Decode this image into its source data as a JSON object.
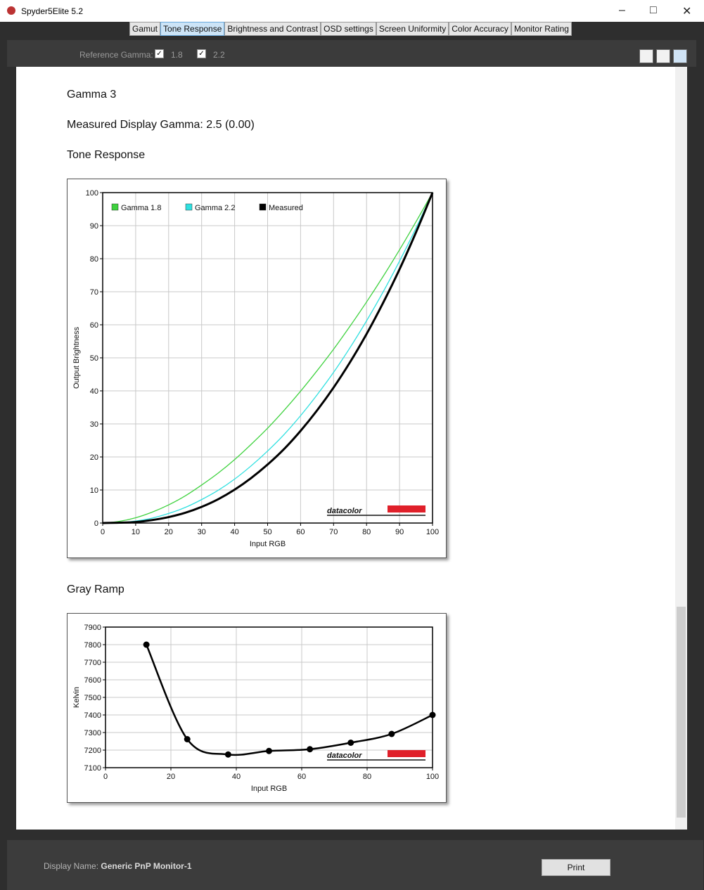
{
  "window": {
    "title": "Spyder5Elite 5.2"
  },
  "tabs": {
    "items": [
      "Gamut",
      "Tone Response",
      "Brightness and Contrast",
      "OSD settings",
      "Screen Uniformity",
      "Color Accuracy",
      "Monitor Rating"
    ],
    "active": 1
  },
  "reference": {
    "label": "Reference Gamma:",
    "options": [
      "1.8",
      "2.2"
    ]
  },
  "content": {
    "gamma_name": "Gamma 3",
    "measured_gamma": "Measured Display Gamma: 2.5 (0.00)"
  },
  "chart_data": [
    {
      "type": "line",
      "title": "Tone Response",
      "xlabel": "Input RGB",
      "ylabel": "Output Brightness",
      "x": [
        0,
        5,
        10,
        15,
        20,
        25,
        30,
        35,
        40,
        45,
        50,
        55,
        60,
        65,
        70,
        75,
        80,
        85,
        90,
        95,
        100
      ],
      "series": [
        {
          "name": "Gamma 1.8",
          "color": "#3fd23f",
          "values": [
            0,
            0.5,
            1.6,
            3.3,
            5.5,
            8.2,
            11.5,
            15.1,
            19.2,
            23.8,
            28.7,
            34.1,
            39.9,
            46.1,
            52.6,
            59.6,
            66.9,
            74.6,
            82.7,
            91.2,
            100
          ]
        },
        {
          "name": "Gamma 2.2",
          "color": "#2ee0e0",
          "values": [
            0,
            0.1,
            0.6,
            1.5,
            2.9,
            4.7,
            7.1,
            9.9,
            13.3,
            17.3,
            21.8,
            26.8,
            32.5,
            38.8,
            45.6,
            53.1,
            61.2,
            69.9,
            79.3,
            89.3,
            100
          ]
        },
        {
          "name": "Measured",
          "color": "#000000",
          "values": [
            0,
            0.1,
            0.3,
            0.9,
            1.8,
            3.1,
            4.9,
            7.2,
            10.1,
            13.6,
            17.7,
            22.4,
            27.9,
            34.1,
            41.0,
            48.7,
            57.2,
            66.6,
            76.8,
            88.0,
            100
          ]
        }
      ],
      "xlim": [
        0,
        100
      ],
      "ylim": [
        0,
        100
      ],
      "xticks": [
        0,
        10,
        20,
        30,
        40,
        50,
        60,
        70,
        80,
        90,
        100
      ],
      "yticks": [
        0,
        10,
        20,
        30,
        40,
        50,
        60,
        70,
        80,
        90,
        100
      ],
      "grid": true,
      "legend": "top-left",
      "watermark": "datacolor"
    },
    {
      "type": "line",
      "title": "Gray Ramp",
      "xlabel": "Input RGB",
      "ylabel": "Kelvin",
      "x": [
        12.5,
        25,
        37.5,
        50,
        62.5,
        75,
        87.5,
        100
      ],
      "values": [
        7800,
        7262,
        7175,
        7195,
        7205,
        7242,
        7292,
        7400
      ],
      "color": "#000000",
      "markers": true,
      "xlim": [
        0,
        100
      ],
      "ylim": [
        7100,
        7900
      ],
      "xticks": [
        0,
        20,
        40,
        60,
        80,
        100
      ],
      "yticks": [
        7100,
        7200,
        7300,
        7400,
        7500,
        7600,
        7700,
        7800,
        7900
      ],
      "grid": true,
      "watermark": "datacolor"
    }
  ],
  "footer": {
    "display_label": "Display Name:",
    "display_name": "Generic PnP Monitor-1",
    "print": "Print"
  }
}
